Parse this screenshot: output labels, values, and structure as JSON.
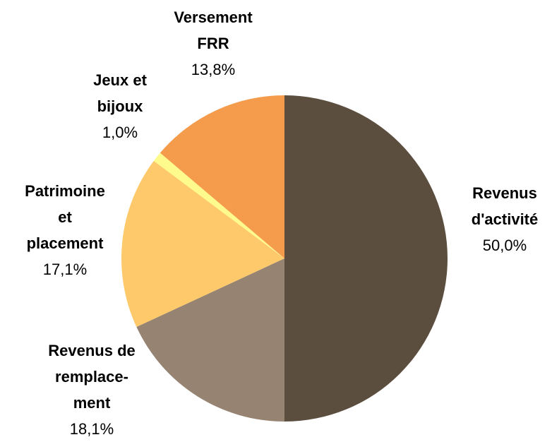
{
  "chart_data": {
    "type": "pie",
    "categories": [
      "Revenus\nd'activité",
      "Revenus de\nremplace-\nment",
      "Patrimoine\net\nplacement",
      "Jeux et\nbijoux",
      "Versement\nFRR"
    ],
    "values": [
      50.0,
      18.1,
      17.1,
      1.0,
      13.8
    ],
    "value_labels": [
      "50,0%",
      "18,1%",
      "17,1%",
      "1,0%",
      "13,8%"
    ],
    "colors": [
      "#5c4e3e",
      "#968371",
      "#fdc96a",
      "#fffa8c",
      "#f59b4c"
    ]
  }
}
